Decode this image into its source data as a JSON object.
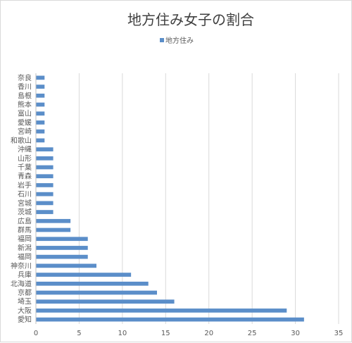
{
  "chart_data": {
    "type": "bar",
    "orientation": "horizontal",
    "title": "地方住み女子の割合",
    "legend_position": "top",
    "categories": [
      "愛知",
      "大阪",
      "埼玉",
      "京都",
      "北海道",
      "兵庫",
      "神奈川",
      "福岡",
      "新潟",
      "福岡",
      "群馬",
      "広島",
      "茨城",
      "宮城",
      "石川",
      "岩手",
      "青森",
      "千葉",
      "山形",
      "沖縄",
      "和歌山",
      "宮崎",
      "愛媛",
      "富山",
      "熊本",
      "島根",
      "香川",
      "奈良"
    ],
    "series": [
      {
        "name": "地方住み",
        "color": "#5b8ec9",
        "values": [
          31,
          29,
          16,
          14,
          13,
          11,
          7,
          6,
          6,
          6,
          4,
          4,
          2,
          2,
          2,
          2,
          2,
          2,
          2,
          2,
          1,
          1,
          1,
          1,
          1,
          1,
          1,
          1
        ]
      }
    ],
    "xlim": [
      0,
      35
    ],
    "xticks": [
      "0",
      "5",
      "10",
      "15",
      "20",
      "25",
      "30",
      "35"
    ],
    "grid": "vertical"
  }
}
